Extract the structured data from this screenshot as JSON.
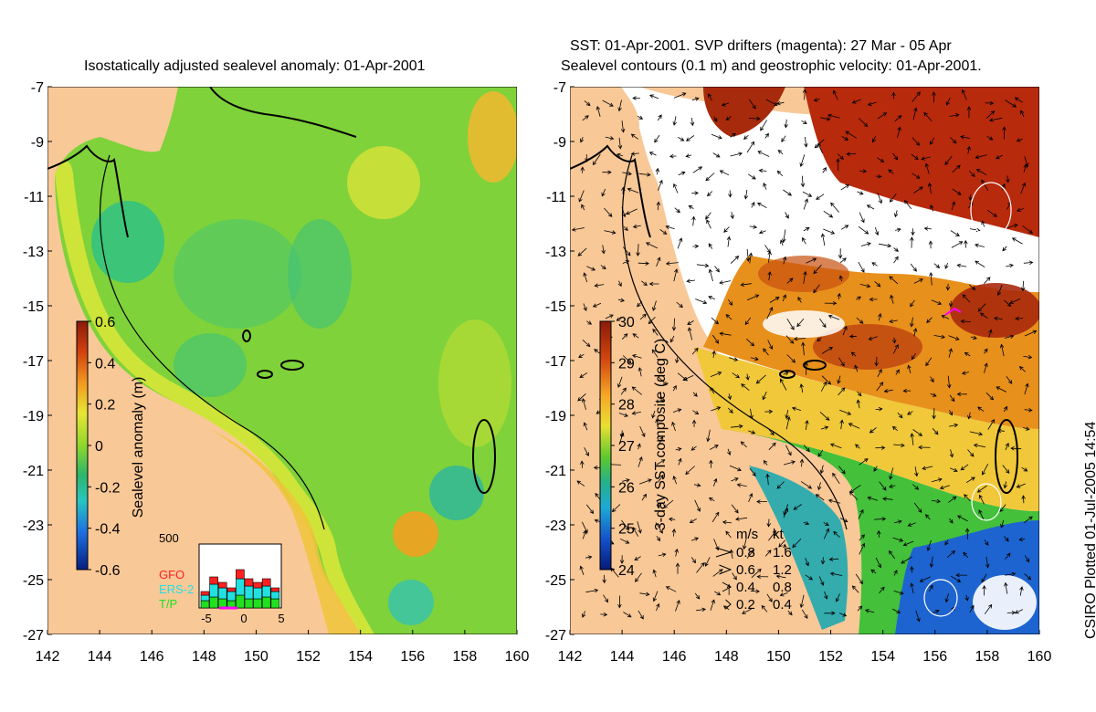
{
  "left_panel": {
    "title": "Isostatically adjusted sealevel anomaly: 01-Apr-2001",
    "colorbar": {
      "label": "Sealevel anomaly (m)",
      "ticks": [
        "0.6",
        "0.4",
        "0.2",
        "0",
        "-0.2",
        "-0.4",
        "-0.6"
      ],
      "colors": [
        "#8b1a0a",
        "#c8380f",
        "#ee7a12",
        "#f6b02a",
        "#e9e535",
        "#9ddc2c",
        "#3cc233",
        "#2cb56a",
        "#28c6c0",
        "#1e8fe0",
        "#0d3fb8",
        "#061e7e"
      ]
    },
    "satellite_legend": [
      {
        "name": "GFO",
        "color": "#ff2020"
      },
      {
        "name": "ERS-2",
        "color": "#20e0e0"
      },
      {
        "name": "T/P",
        "color": "#20e020"
      }
    ],
    "histogram": {
      "ymax_label": "500",
      "xticks": [
        "-5",
        "0",
        "5"
      ]
    }
  },
  "right_panel": {
    "title_line1": "SST: 01-Apr-2001. SVP drifters (magenta): 27 Mar - 05 Apr",
    "title_line2": "Sealevel contours (0.1 m) and geostrophic velocity: 01-Apr-2001.",
    "colorbar": {
      "label": "3-day SST composite (deg C)",
      "ticks": [
        "30",
        "29",
        "28",
        "27",
        "26",
        "25",
        "24"
      ],
      "colors": [
        "#8b1a0a",
        "#c8380f",
        "#e26a12",
        "#f6a828",
        "#eadf32",
        "#8fd42c",
        "#33bb3a",
        "#23b08a",
        "#1ea9d6",
        "#1766d8",
        "#0b2ea6",
        "#061a78"
      ]
    },
    "velocity_legend": {
      "header": [
        "m/s",
        "kt"
      ],
      "rows": [
        [
          "0.8",
          "1.6"
        ],
        [
          "0.6",
          "1.2"
        ],
        [
          "0.4",
          "0.8"
        ],
        [
          "0.2",
          "0.4"
        ]
      ]
    }
  },
  "axes": {
    "y_ticks": [
      "-7",
      "-9",
      "-11",
      "-13",
      "-15",
      "-17",
      "-19",
      "-21",
      "-23",
      "-25",
      "-27"
    ],
    "x_ticks": [
      "142",
      "144",
      "146",
      "148",
      "150",
      "152",
      "154",
      "156",
      "158",
      "160"
    ]
  },
  "credit": "CSIRO Plotted 01-Jul-2005 14:54"
}
